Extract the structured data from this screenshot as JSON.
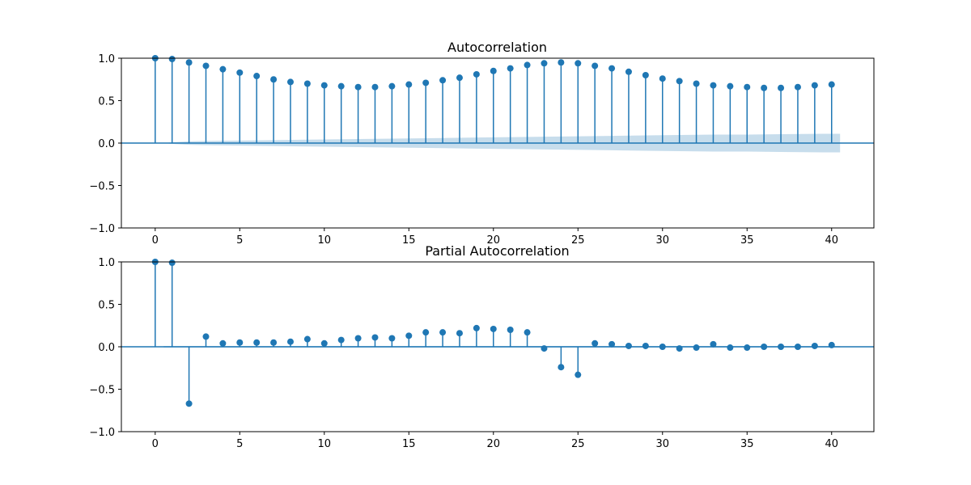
{
  "chart_data": [
    {
      "type": "stem",
      "title": "Autocorrelation",
      "xlim": [
        -2,
        42.5
      ],
      "ylim": [
        -1.0,
        1.0
      ],
      "xticks": [
        "0",
        "5",
        "10",
        "15",
        "20",
        "25",
        "30",
        "35",
        "40"
      ],
      "yticks": [
        "−1.0",
        "−0.5",
        "0.0",
        "0.5",
        "1.0"
      ],
      "grid": false,
      "x": [
        0,
        1,
        2,
        3,
        4,
        5,
        6,
        7,
        8,
        9,
        10,
        11,
        12,
        13,
        14,
        15,
        16,
        17,
        18,
        19,
        20,
        21,
        22,
        23,
        24,
        25,
        26,
        27,
        28,
        29,
        30,
        31,
        32,
        33,
        34,
        35,
        36,
        37,
        38,
        39,
        40
      ],
      "values": [
        1.0,
        0.99,
        0.95,
        0.91,
        0.87,
        0.83,
        0.79,
        0.75,
        0.72,
        0.7,
        0.68,
        0.67,
        0.66,
        0.66,
        0.67,
        0.69,
        0.71,
        0.74,
        0.77,
        0.81,
        0.85,
        0.88,
        0.92,
        0.94,
        0.95,
        0.94,
        0.91,
        0.88,
        0.84,
        0.8,
        0.76,
        0.73,
        0.7,
        0.68,
        0.67,
        0.66,
        0.65,
        0.65,
        0.66,
        0.68,
        0.69
      ],
      "confidence_band": {
        "x": [
          0.5,
          1,
          2,
          3,
          5,
          7,
          9,
          11,
          13,
          15,
          17,
          19,
          21,
          23,
          25,
          27,
          29,
          31,
          33,
          35,
          37,
          40,
          40.5
        ],
        "upper": [
          0,
          0.01,
          0.02,
          0.025,
          0.03,
          0.035,
          0.04,
          0.045,
          0.05,
          0.055,
          0.06,
          0.065,
          0.07,
          0.075,
          0.08,
          0.085,
          0.09,
          0.095,
          0.1,
          0.1,
          0.105,
          0.11,
          0.11
        ]
      },
      "colors": {
        "stem": "#1f77b4",
        "band": "#1f77b4"
      }
    },
    {
      "type": "stem",
      "title": "Partial Autocorrelation",
      "xlim": [
        -2,
        42.5
      ],
      "ylim": [
        -1.0,
        1.0
      ],
      "xticks": [
        "0",
        "5",
        "10",
        "15",
        "20",
        "25",
        "30",
        "35",
        "40"
      ],
      "yticks": [
        "−1.0",
        "−0.5",
        "0.0",
        "0.5",
        "1.0"
      ],
      "grid": false,
      "x": [
        0,
        1,
        2,
        3,
        4,
        5,
        6,
        7,
        8,
        9,
        10,
        11,
        12,
        13,
        14,
        15,
        16,
        17,
        18,
        19,
        20,
        21,
        22,
        23,
        24,
        25,
        26,
        27,
        28,
        29,
        30,
        31,
        32,
        33,
        34,
        35,
        36,
        37,
        38,
        39,
        40
      ],
      "values": [
        1.0,
        0.99,
        -0.67,
        0.12,
        0.04,
        0.05,
        0.05,
        0.05,
        0.06,
        0.09,
        0.04,
        0.08,
        0.1,
        0.11,
        0.1,
        0.13,
        0.17,
        0.17,
        0.16,
        0.22,
        0.21,
        0.2,
        0.17,
        -0.02,
        -0.24,
        -0.33,
        0.04,
        0.03,
        0.01,
        0.01,
        0.0,
        -0.02,
        -0.01,
        0.03,
        -0.01,
        -0.01,
        0.0,
        0.0,
        0.0,
        0.01,
        0.02
      ],
      "confidence_band": {
        "x": [
          0.5,
          40.5
        ],
        "upper": [
          0.01,
          0.01
        ]
      },
      "colors": {
        "stem": "#1f77b4",
        "band": "#1f77b4"
      }
    }
  ]
}
